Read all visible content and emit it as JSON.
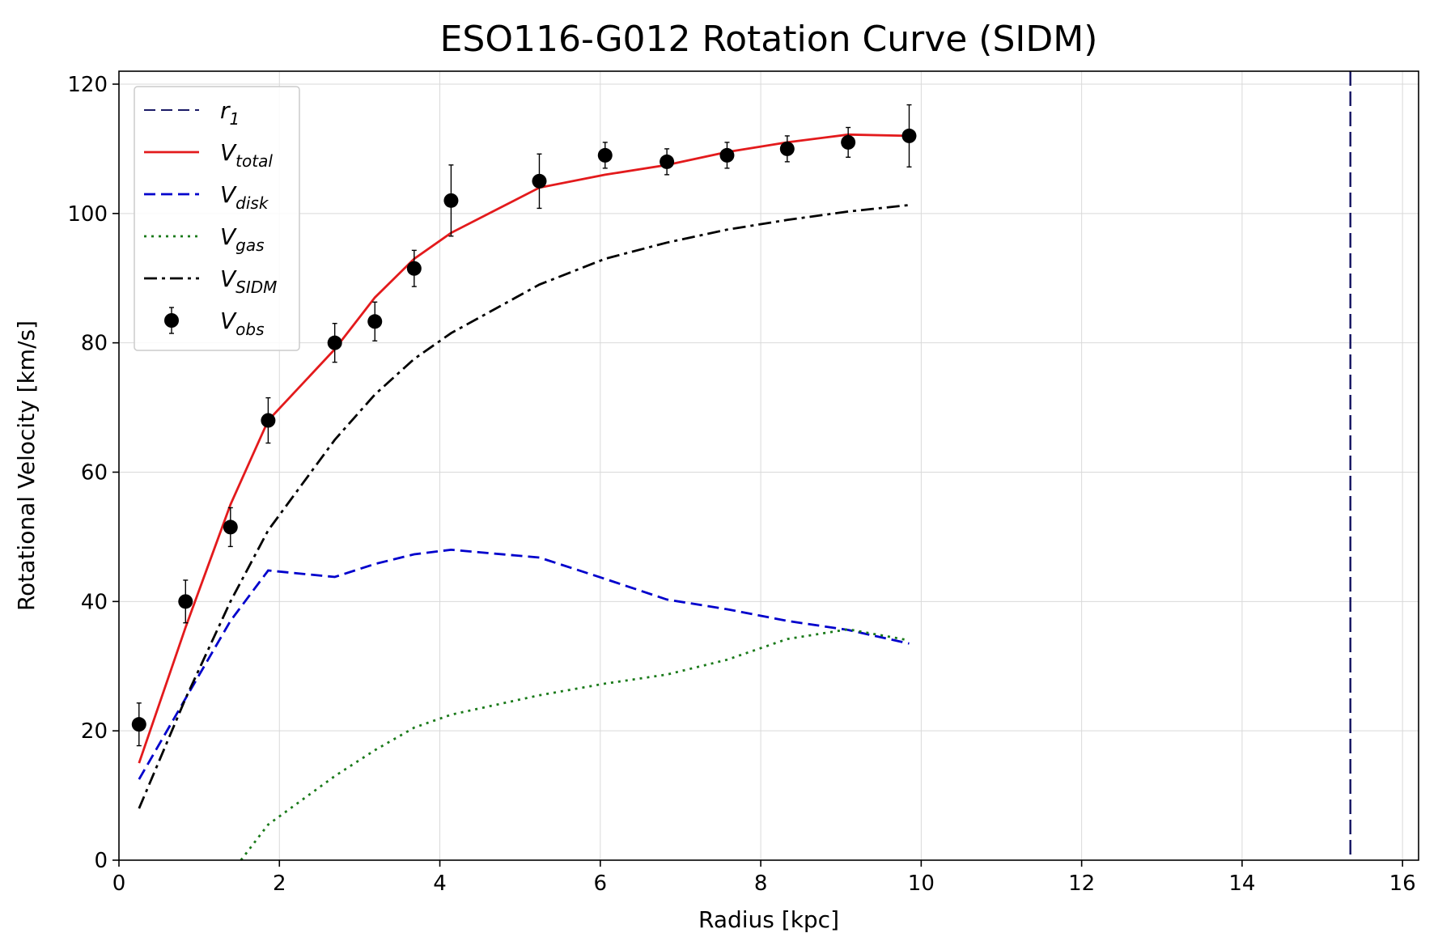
{
  "chart_data": {
    "type": "line",
    "title": "ESO116-G012 Rotation Curve (SIDM)",
    "xlabel": "Radius [kpc]",
    "ylabel": "Rotational Velocity [km/s]",
    "xlim": [
      0,
      16.2
    ],
    "ylim": [
      0,
      122
    ],
    "xticks": [
      0,
      2,
      4,
      6,
      8,
      10,
      12,
      14,
      16
    ],
    "yticks": [
      0,
      20,
      40,
      60,
      80,
      100,
      120
    ],
    "grid": true,
    "legend_position": "top-left",
    "r1": 15.35,
    "series": [
      {
        "key": "r1",
        "name_main": "r",
        "name_sub": "1",
        "style": "vline",
        "color": "#1a1a66"
      },
      {
        "key": "vtotal",
        "name_main": "V",
        "name_sub": "total",
        "style": "solid",
        "color": "#e31a1c",
        "x": [
          0.25,
          0.83,
          1.39,
          1.86,
          2.69,
          3.19,
          3.68,
          4.14,
          5.24,
          6.06,
          6.83,
          7.58,
          8.33,
          9.09,
          9.85
        ],
        "y": [
          15,
          36,
          55,
          68,
          79,
          87,
          93,
          97,
          104,
          106,
          107.5,
          109.5,
          111,
          112.2,
          112
        ]
      },
      {
        "key": "vdisk",
        "name_main": "V",
        "name_sub": "disk",
        "style": "dashed",
        "color": "#0000cc",
        "x": [
          0.25,
          0.83,
          1.39,
          1.86,
          2.69,
          3.19,
          3.68,
          4.14,
          5.24,
          6.06,
          6.83,
          7.58,
          8.33,
          9.09,
          9.85
        ],
        "y": [
          12.5,
          25,
          37,
          44.8,
          43.8,
          45.8,
          47.3,
          48,
          46.8,
          43.5,
          40.3,
          38.8,
          37,
          35.6,
          33.5
        ]
      },
      {
        "key": "vgas",
        "name_main": "V",
        "name_sub": "gas",
        "style": "dotted",
        "color": "#1a7a1a",
        "x": [
          1.52,
          1.86,
          2.69,
          3.19,
          3.68,
          4.14,
          5.24,
          6.06,
          6.83,
          7.58,
          8.33,
          9.09,
          9.85
        ],
        "y": [
          0,
          5.5,
          13,
          17,
          20.5,
          22.5,
          25.5,
          27.3,
          28.7,
          31,
          34.2,
          35.7,
          34
        ]
      },
      {
        "key": "vsidm",
        "name_main": "V",
        "name_sub": "SIDM",
        "style": "dashdot",
        "color": "#000000",
        "x": [
          0.25,
          0.83,
          1.39,
          1.86,
          2.69,
          3.19,
          3.68,
          4.14,
          5.24,
          6.06,
          6.83,
          7.58,
          8.33,
          9.09,
          9.85
        ],
        "y": [
          8,
          25,
          40,
          51,
          65,
          72,
          77.5,
          81.5,
          89,
          93,
          95.5,
          97.5,
          99,
          100.3,
          101.3
        ]
      },
      {
        "key": "vobs",
        "name_main": "V",
        "name_sub": "obs",
        "style": "errorbar",
        "color": "#000000",
        "x": [
          0.25,
          0.83,
          1.39,
          1.86,
          2.69,
          3.19,
          3.68,
          4.14,
          5.24,
          6.06,
          6.83,
          7.58,
          8.33,
          9.09,
          9.85
        ],
        "y": [
          21,
          40,
          51.5,
          68,
          80,
          83.3,
          91.5,
          102,
          105,
          109,
          108,
          109,
          110,
          111,
          112
        ],
        "err": [
          3.3,
          3.3,
          3,
          3.5,
          3,
          3,
          2.8,
          5.5,
          4.2,
          2,
          2,
          2,
          2,
          2.3,
          4.8
        ]
      }
    ]
  }
}
